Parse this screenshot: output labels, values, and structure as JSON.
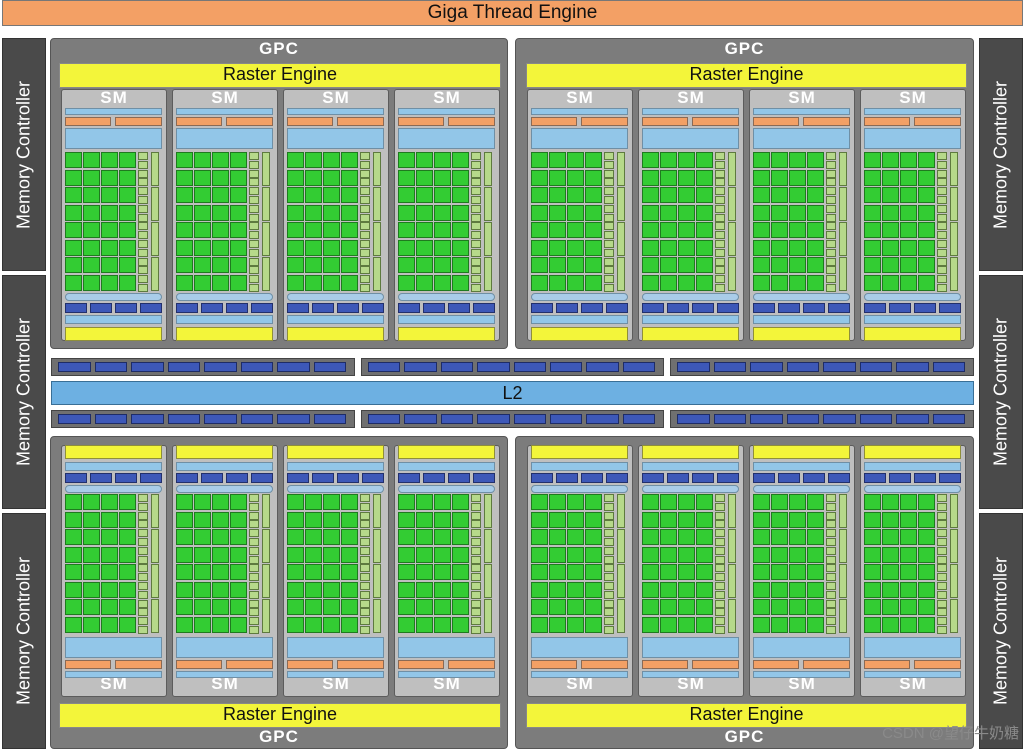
{
  "header": {
    "title": "Giga Thread Engine"
  },
  "memory_controllers": [
    "Memory Controller",
    "Memory Controller",
    "Memory Controller",
    "Memory Controller",
    "Memory Controller",
    "Memory Controller"
  ],
  "gpcs": [
    {
      "label": "GPC",
      "raster": "Raster Engine",
      "sm_labels": [
        "SM",
        "SM",
        "SM",
        "SM"
      ]
    },
    {
      "label": "GPC",
      "raster": "Raster Engine",
      "sm_labels": [
        "SM",
        "SM",
        "SM",
        "SM"
      ]
    },
    {
      "label": "GPC",
      "raster": "Raster Engine",
      "sm_labels": [
        "SM",
        "SM",
        "SM",
        "SM"
      ]
    },
    {
      "label": "GPC",
      "raster": "Raster Engine",
      "sm_labels": [
        "SM",
        "SM",
        "SM",
        "SM"
      ]
    }
  ],
  "l2": {
    "label": "L2"
  },
  "watermark": "CSDN @望仔牛奶糖",
  "colors": {
    "giga_thread": "#f3a065",
    "memory_controller": "#4a4a4a",
    "gpc": "#7c7c7c",
    "raster": "#f3f53a",
    "core": "#33cc33",
    "l2": "#6db0e2",
    "crossbar_cell": "#3d58b8"
  }
}
